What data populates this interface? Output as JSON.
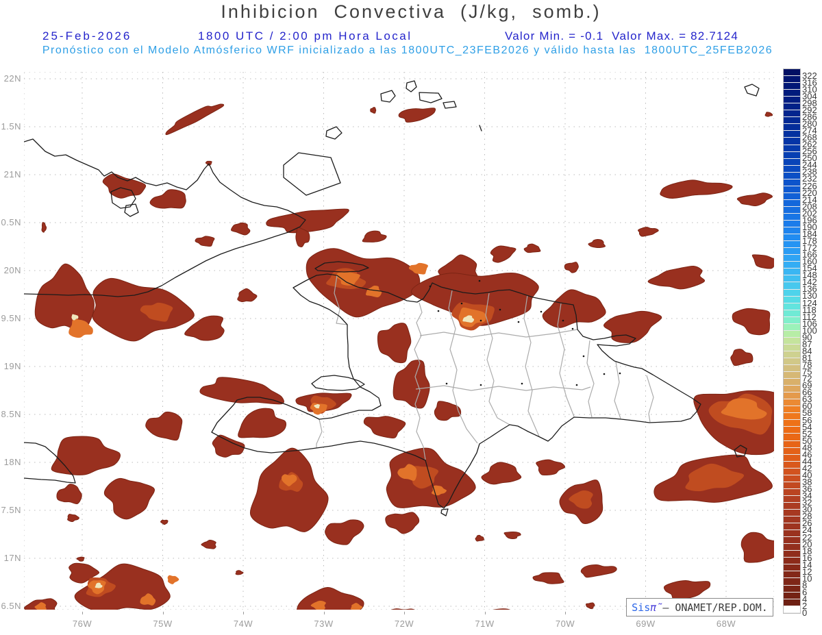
{
  "title": "Inhibicion  Convectiva  (J/kg,  somb.)",
  "header": {
    "date": "25-Feb-2026",
    "time_line": "1800 UTC / 2:00 pm Hora Local",
    "minmax_line": "Valor Min. = -0.1  Valor Max. = 82.7124",
    "forecast_line": "Pronóstico con el Modelo Atmósferico WRF inicializado a las 1800UTC_23FEB2026 y válido hasta las  1800UTC_25FEB2026"
  },
  "axes": {
    "y_labels": [
      "22N",
      "1.5N",
      "21N",
      "0.5N",
      "20N",
      "9.5N",
      "19N",
      "8.5N",
      "18N",
      "7.5N",
      "17N",
      "6.5N"
    ],
    "x_labels": [
      "76W",
      "75W",
      "74W",
      "73W",
      "72W",
      "71W",
      "70W",
      "69W",
      "68W"
    ]
  },
  "colorbar": {
    "labels": [
      322,
      316,
      310,
      304,
      298,
      292,
      286,
      280,
      274,
      268,
      262,
      256,
      250,
      244,
      238,
      232,
      226,
      220,
      214,
      208,
      202,
      196,
      190,
      184,
      178,
      172,
      166,
      160,
      154,
      148,
      142,
      136,
      130,
      124,
      118,
      112,
      106,
      100,
      90,
      87,
      84,
      81,
      78,
      75,
      72,
      69,
      66,
      63,
      60,
      58,
      56,
      54,
      52,
      50,
      48,
      46,
      44,
      42,
      40,
      38,
      36,
      34,
      32,
      30,
      28,
      26,
      24,
      22,
      20,
      18,
      16,
      14,
      12,
      10,
      8,
      6,
      4,
      2,
      0
    ],
    "stops": [
      {
        "v": 0,
        "c": "#ffffff"
      },
      {
        "v": 2,
        "c": "#6b1f12"
      },
      {
        "v": 8,
        "c": "#7c2516"
      },
      {
        "v": 16,
        "c": "#8e2c1b"
      },
      {
        "v": 24,
        "c": "#9c3320"
      },
      {
        "v": 32,
        "c": "#ad3d22"
      },
      {
        "v": 40,
        "c": "#cf5020"
      },
      {
        "v": 46,
        "c": "#e35f18"
      },
      {
        "v": 54,
        "c": "#ee6d14"
      },
      {
        "v": 60,
        "c": "#ef8226"
      },
      {
        "v": 66,
        "c": "#e0a258"
      },
      {
        "v": 72,
        "c": "#d7b470"
      },
      {
        "v": 78,
        "c": "#d2c384"
      },
      {
        "v": 84,
        "c": "#ccd694"
      },
      {
        "v": 90,
        "c": "#c3e8a0"
      },
      {
        "v": 100,
        "c": "#abf2ac"
      },
      {
        "v": 106,
        "c": "#8af1c6"
      },
      {
        "v": 118,
        "c": "#67e8da"
      },
      {
        "v": 130,
        "c": "#52d8e9"
      },
      {
        "v": 142,
        "c": "#43c3f0"
      },
      {
        "v": 154,
        "c": "#37b1f4"
      },
      {
        "v": 166,
        "c": "#2ca0f4"
      },
      {
        "v": 178,
        "c": "#2390f2"
      },
      {
        "v": 190,
        "c": "#1c80ec"
      },
      {
        "v": 202,
        "c": "#1771e2"
      },
      {
        "v": 214,
        "c": "#1263d8"
      },
      {
        "v": 226,
        "c": "#0e57ce"
      },
      {
        "v": 238,
        "c": "#0a4cc2"
      },
      {
        "v": 250,
        "c": "#0741b5"
      },
      {
        "v": 262,
        "c": "#0537a9"
      },
      {
        "v": 274,
        "c": "#042f9d"
      },
      {
        "v": 286,
        "c": "#032791"
      },
      {
        "v": 298,
        "c": "#022085"
      },
      {
        "v": 310,
        "c": "#011979"
      },
      {
        "v": 322,
        "c": "#01126e"
      },
      {
        "v": 328,
        "c": "#000b57"
      }
    ]
  },
  "branding": {
    "sis": "Sis",
    "pi": "π̃",
    "sep": "– ",
    "org": "ONAMET/REP.DOM."
  },
  "colors": {
    "title": "#3f3f3f",
    "header_blue": "#2424cb",
    "header_cyan": "#2e9fe6",
    "axis_label": "#9b9b9b",
    "grid": "#b9b9b9",
    "coast": "#1b1b1b",
    "province": "#ababab",
    "cin_base": "#99301f",
    "cin_rim": "#7c2414",
    "cin_mid": "#c04c20",
    "cin_orange": "#e2732a",
    "cin_pale": "#f0e7bd",
    "station_dot": "#141414"
  }
}
